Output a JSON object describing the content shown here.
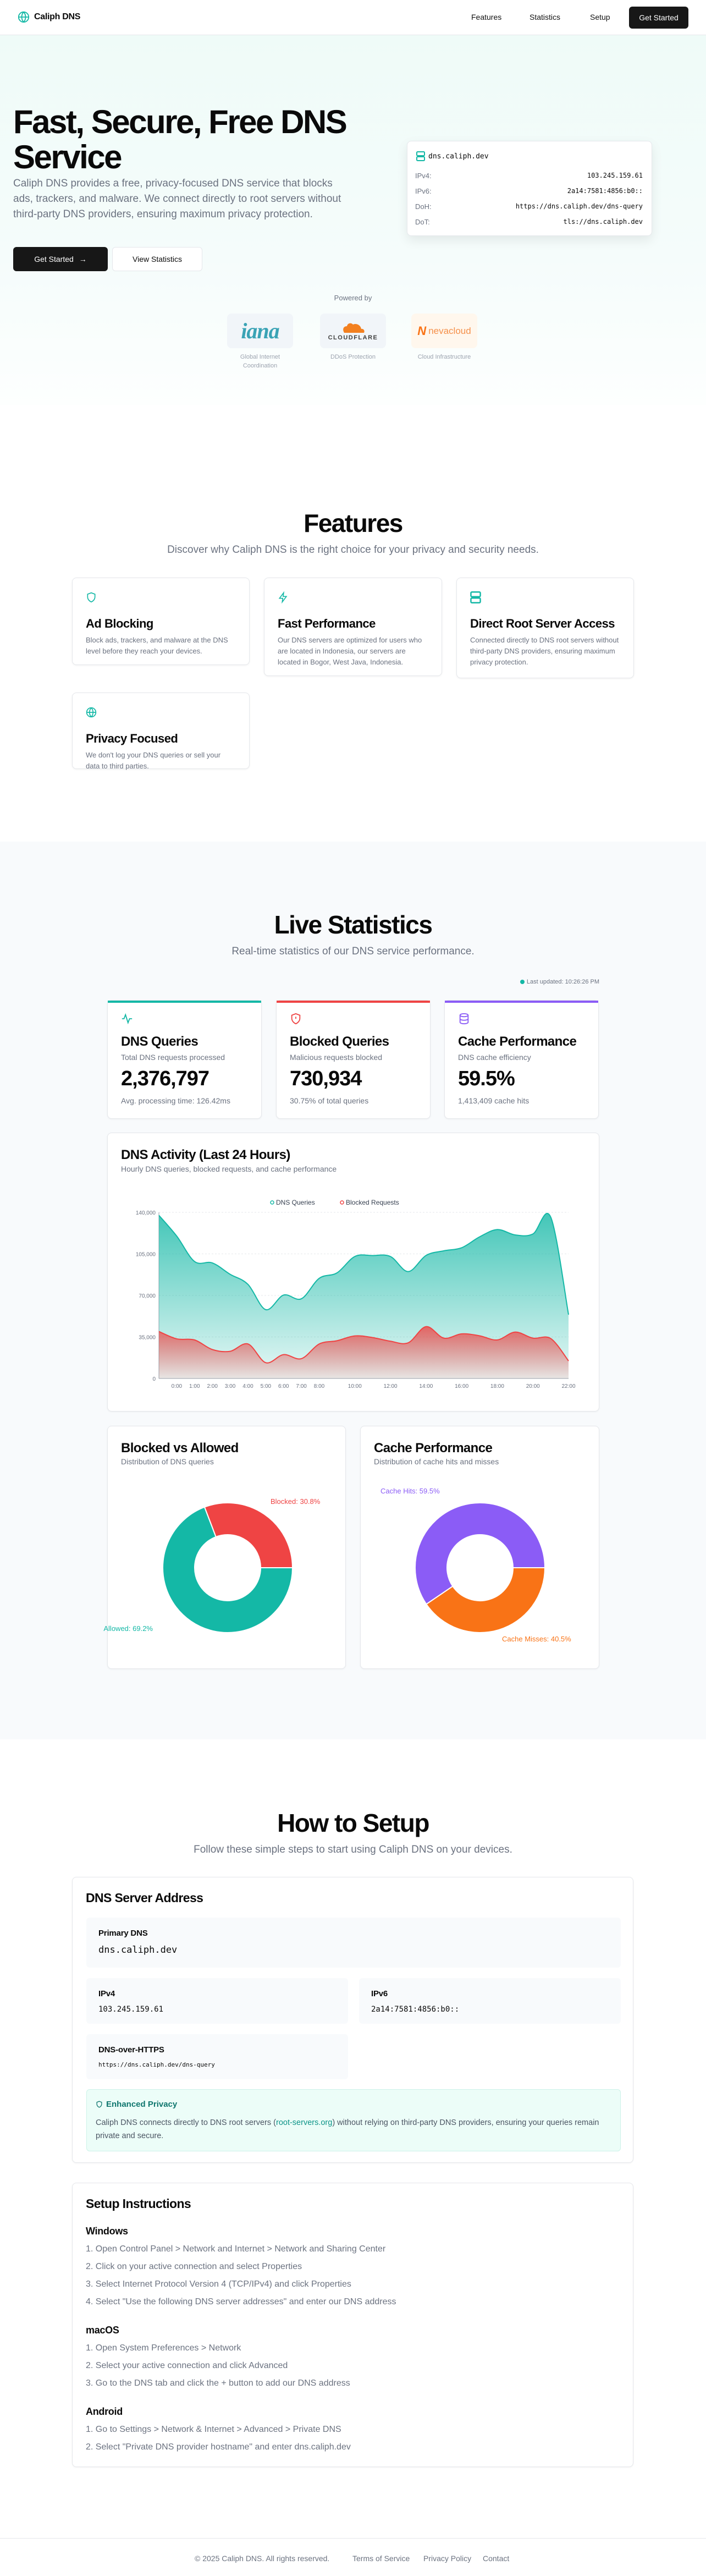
{
  "nav": {
    "brand": "Caliph DNS",
    "links": [
      "Features",
      "Statistics",
      "Setup"
    ],
    "cta": "Get Started"
  },
  "hero": {
    "title": "Fast, Secure, Free DNS Service",
    "description": "Caliph DNS provides a free, privacy-focused DNS service that blocks ads, trackers, and malware. We connect directly to root servers without third-party DNS providers, ensuring maximum privacy protection.",
    "primary_button": "Get Started",
    "secondary_button": "View Statistics",
    "card": {
      "host": "dns.caliph.dev",
      "rows": [
        {
          "label": "IPv4:",
          "value": "103.245.159.61"
        },
        {
          "label": "IPv6:",
          "value": "2a14:7581:4856:b0::"
        },
        {
          "label": "DoH:",
          "value": "https://dns.caliph.dev/dns-query"
        },
        {
          "label": "DoT:",
          "value": "tls://dns.caliph.dev"
        }
      ]
    },
    "powered_by": "Powered by",
    "partners": [
      {
        "logo": "iana",
        "caption": "Global Internet Coordination"
      },
      {
        "logo": "CLOUDFLARE",
        "caption": "DDoS Protection"
      },
      {
        "logo": "nevacloud",
        "caption": "Cloud Infrastructure"
      }
    ]
  },
  "features": {
    "title": "Features",
    "subtitle": "Discover why Caliph DNS is the right choice for your privacy and security needs.",
    "items": [
      {
        "icon": "shield-icon",
        "title": "Ad Blocking",
        "text": "Block ads, trackers, and malware at the DNS level before they reach your devices."
      },
      {
        "icon": "zap-icon",
        "title": "Fast Performance",
        "text": "Our DNS servers are optimized for users who are located in Indonesia, our servers are located in Bogor, West Java, Indonesia."
      },
      {
        "icon": "server-icon",
        "title": "Direct Root Server Access",
        "text": "Connected directly to DNS root servers without third-party DNS providers, ensuring maximum privacy protection."
      },
      {
        "icon": "globe-icon",
        "title": "Privacy Focused",
        "text": "We don't log your DNS queries or sell your data to third parties."
      }
    ]
  },
  "stats": {
    "title": "Live Statistics",
    "subtitle": "Real-time statistics of our DNS service performance.",
    "last_updated": "Last updated: 10:26:26 PM",
    "cards": [
      {
        "icon": "activity-icon",
        "title": "DNS Queries",
        "desc": "Total DNS requests processed",
        "value": "2,376,797",
        "foot": "Avg. processing time: 126.42ms",
        "color": "#14b8a6"
      },
      {
        "icon": "shield-alert-icon",
        "title": "Blocked Queries",
        "desc": "Malicious requests blocked",
        "value": "730,934",
        "foot": "30.75% of total queries",
        "color": "#ef4444"
      },
      {
        "icon": "database-icon",
        "title": "Cache Performance",
        "desc": "DNS cache efficiency",
        "value": "59.5%",
        "foot": "1,413,409 cache hits",
        "color": "#8b5cf6"
      }
    ],
    "activity": {
      "title": "DNS Activity (Last 24 Hours)",
      "subtitle": "Hourly DNS queries, blocked requests, and cache performance"
    },
    "blocked_panel": {
      "title": "Blocked vs Allowed",
      "subtitle": "Distribution of DNS queries"
    },
    "cache_panel": {
      "title": "Cache Performance",
      "subtitle": "Distribution of cache hits and misses"
    }
  },
  "chart_data": [
    {
      "type": "area",
      "title": "DNS Activity (Last 24 Hours)",
      "categories": [
        "",
        "0:00",
        "1:00",
        "2:00",
        "3:00",
        "4:00",
        "5:00",
        "6:00",
        "7:00",
        "8:00",
        "",
        "10:00",
        "",
        "12:00",
        "",
        "14:00",
        "",
        "16:00",
        "",
        "18:00",
        "",
        "20:00",
        "",
        "22:00"
      ],
      "series": [
        {
          "name": "DNS Queries",
          "color": "#14b8a6",
          "values": [
            137500,
            120000,
            98600,
            97400,
            87800,
            79300,
            58000,
            70300,
            67200,
            84400,
            89000,
            102800,
            103600,
            102800,
            90100,
            103700,
            107600,
            110200,
            119300,
            125500,
            121000,
            121800,
            136000,
            53800
          ]
        },
        {
          "name": "Blocked Requests",
          "color": "#ef4444",
          "values": [
            39600,
            33400,
            32500,
            24400,
            22900,
            29100,
            13300,
            20100,
            16700,
            29100,
            31800,
            35900,
            34500,
            31400,
            30100,
            43700,
            34000,
            37600,
            36000,
            32500,
            39100,
            34000,
            33700,
            14800
          ]
        }
      ],
      "yticks": [
        "0",
        "35,000",
        "70,000",
        "105,000",
        "140,000"
      ],
      "ylim": [
        0,
        140000
      ],
      "legend": "top-center",
      "grid": true
    },
    {
      "type": "pie",
      "title": "Blocked vs Allowed",
      "slices": [
        {
          "label": "Blocked: 30.8%",
          "value": 30.8,
          "color": "#ef4444"
        },
        {
          "label": "Allowed: 69.2%",
          "value": 69.2,
          "color": "#14b8a6"
        }
      ]
    },
    {
      "type": "pie",
      "title": "Cache Performance",
      "slices": [
        {
          "label": "Cache Hits: 59.5%",
          "value": 59.5,
          "color": "#8b5cf6"
        },
        {
          "label": "Cache Misses: 40.5%",
          "value": 40.5,
          "color": "#f97316"
        }
      ]
    }
  ],
  "setup": {
    "title": "How to Setup",
    "subtitle": "Follow these simple steps to start using Caliph DNS on your devices.",
    "server": {
      "title": "DNS Server Address",
      "primary_label": "Primary DNS",
      "primary": "dns.caliph.dev",
      "ipv4_label": "IPv4",
      "ipv4": "103.245.159.61",
      "ipv6_label": "IPv6",
      "ipv6": "2a14:7581:4856:b0::",
      "doh_label": "DNS-over-HTTPS",
      "doh": "https://dns.caliph.dev/dns-query",
      "privacy_title": "Enhanced Privacy",
      "privacy_pre": "Caliph DNS connects directly to DNS root servers (",
      "privacy_link": "root-servers.org",
      "privacy_post": ") without relying on third-party DNS providers, ensuring your queries remain private and secure."
    },
    "instructions": {
      "title": "Setup Instructions",
      "windows": {
        "name": "Windows",
        "steps": [
          "1. Open Control Panel > Network and Internet > Network and Sharing Center",
          "2. Click on your active connection and select Properties",
          "3. Select Internet Protocol Version 4 (TCP/IPv4) and click Properties",
          "4. Select \"Use the following DNS server addresses\" and enter our DNS address"
        ]
      },
      "macos": {
        "name": "macOS",
        "steps": [
          "1. Open System Preferences > Network",
          "2. Select your active connection and click Advanced",
          "3. Go to the DNS tab and click the + button to add our DNS address"
        ]
      },
      "android": {
        "name": "Android",
        "steps": [
          "1. Go to Settings > Network & Internet > Advanced > Private DNS",
          "2. Select \"Private DNS provider hostname\" and enter dns.caliph.dev"
        ]
      }
    }
  },
  "footer": {
    "copyright": "© 2025 Caliph DNS. All rights reserved.",
    "links": [
      "Terms of Service",
      "Privacy Policy",
      "Contact"
    ]
  }
}
